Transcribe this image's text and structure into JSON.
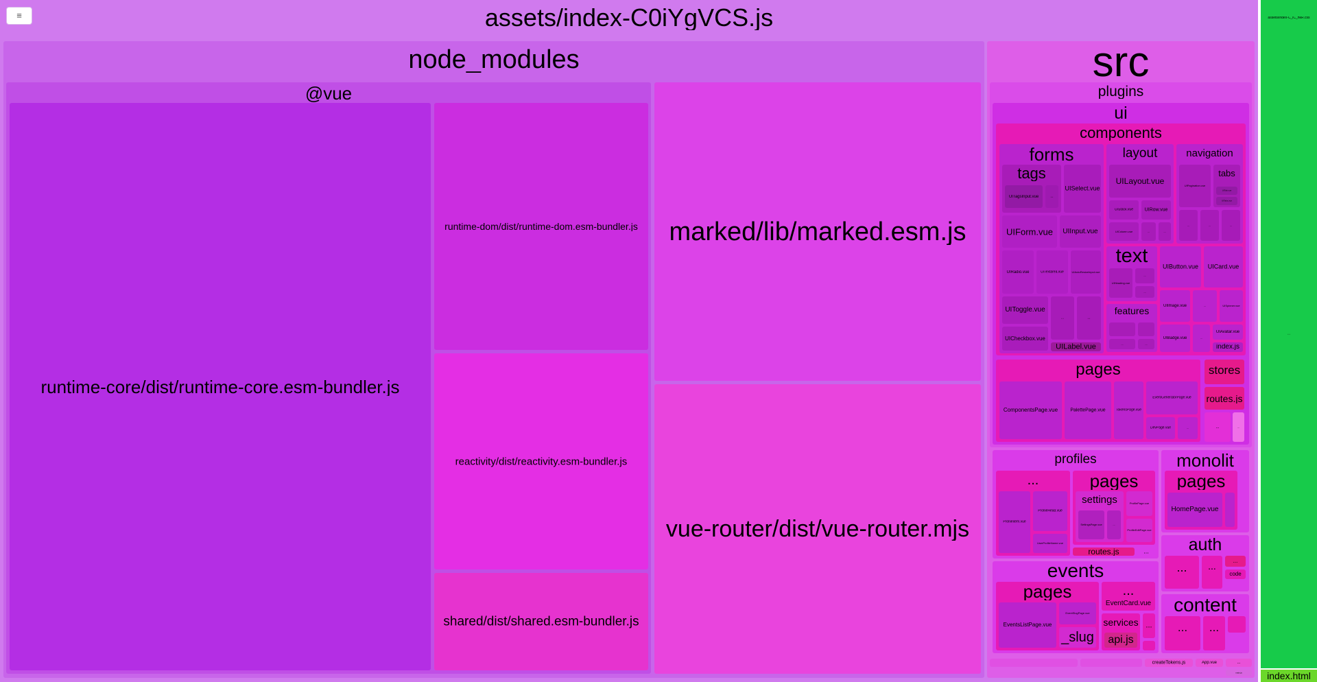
{
  "menu_button": {
    "label": "≡",
    "icon": "hamburger-menu-icon"
  },
  "bundle_title": "assets/index-C0iYgVCS.js",
  "side_bundle_title": "assets/index-C_iC_hkR.css",
  "side_bundle_dots": "...",
  "index_html_label": "index.html",
  "node_modules": {
    "label": "node_modules",
    "vue": {
      "label": "@vue",
      "runtime_core": "runtime-core/dist/runtime-core.esm-bundler.js",
      "runtime_dom": "runtime-dom/dist/runtime-dom.esm-bundler.js",
      "reactivity": "reactivity/dist/reactivity.esm-bundler.js",
      "shared": "shared/dist/shared.esm-bundler.js"
    },
    "marked": "marked/lib/marked.esm.js",
    "vue_router": "vue-router/dist/vue-router.mjs"
  },
  "src": {
    "label": "src",
    "plugins": {
      "label": "plugins",
      "ui": {
        "label": "ui",
        "components": {
          "label": "components",
          "forms": {
            "label": "forms",
            "tags": {
              "label": "tags",
              "tag_input": "UITagsInput.vue",
              "dots": "..."
            },
            "select": "UISelect.vue",
            "form": "UIForm.vue",
            "input": "UIInput.vue",
            "radio": "UIRadio.vue",
            "textarea": "UITextarea.vue",
            "switch": "UIAutoResizeInput.vue",
            "toggle": "UIToggle.vue",
            "dots1": "...",
            "dots2": "...",
            "checkbox": "UICheckbox.vue",
            "label_vue": "UILabel.vue"
          },
          "layout": {
            "label": "layout",
            "layout_vue": "UILayout.vue",
            "row": "UIRow.vue",
            "stack": "UIStack.vue",
            "col": "UIColumn.vue",
            "dots": "..."
          },
          "navigation": {
            "label": "navigation",
            "pagination": "UIPagination.vue",
            "tabs": "tabs",
            "tab1": "UITab.vue",
            "tab2": "UITabs.vue",
            "dots": "..."
          },
          "text": {
            "label": "text",
            "heading": "UIHeading.vue",
            "dots": "..."
          },
          "features": {
            "label": "features",
            "dots": "..."
          },
          "button": "UIButton.vue",
          "card": "UICard.vue",
          "image": "UIImage.vue",
          "badge": "UIBadge.vue",
          "avatar": "UIAvatar.vue",
          "spinner": "UISpinner.vue",
          "index_js": "index.js",
          "dots": "..."
        },
        "pages": {
          "label": "pages",
          "components_page": "ComponentsPage.vue",
          "palette_page": "PalettePage.vue",
          "tokens_page": "TokensPage.vue",
          "event_generator_page": "EventGeneratorPage.vue",
          "dev_page": "DevPage.vue",
          "dots": "..."
        },
        "stores": {
          "label": "stores",
          "sub": "..."
        },
        "routes": "routes.js",
        "dots": "...",
        "misc": "..."
      }
    },
    "profiles": {
      "label": "profiles",
      "dots_group": {
        "label": "...",
        "profile_item": "ProfileItem.vue",
        "profile_head": "ProfileHead.vue",
        "user_profile": "UserProfileName.vue"
      },
      "pages": {
        "label": "pages",
        "settings": "settings",
        "item1": "ProfilePage.vue",
        "item2": "ProfileEditPage.vue",
        "item3": "SettingsPage.vue",
        "dots": "..."
      },
      "routes": "routes.js",
      "dots": "..."
    },
    "monolit": {
      "label": "monolit",
      "pages": "pages",
      "home": "HomePage.vue"
    },
    "auth": {
      "label": "auth",
      "dots": "...",
      "code": "code"
    },
    "events": {
      "label": "events",
      "pages": {
        "label": "pages",
        "list_page": "EventsListPage.vue",
        "slug_label": "_slug",
        "slug_page": "EventSlugPage.vue"
      },
      "dots_group": {
        "label": "...",
        "card": "EventCard.vue"
      },
      "services": {
        "label": "services",
        "api": "api.js"
      },
      "dots": "..."
    },
    "content": {
      "label": "content",
      "dots": "..."
    },
    "bottom": {
      "create_tokens": "createTokens.js",
      "app_vue": "App.vue",
      "dots": "...",
      "main": "main.js"
    }
  },
  "colors": {
    "root": "#d07aee",
    "node_modules": "#c865ea",
    "vue": "#c04fe6",
    "green": "#17cb4a",
    "index_green": "#6bd72a"
  }
}
